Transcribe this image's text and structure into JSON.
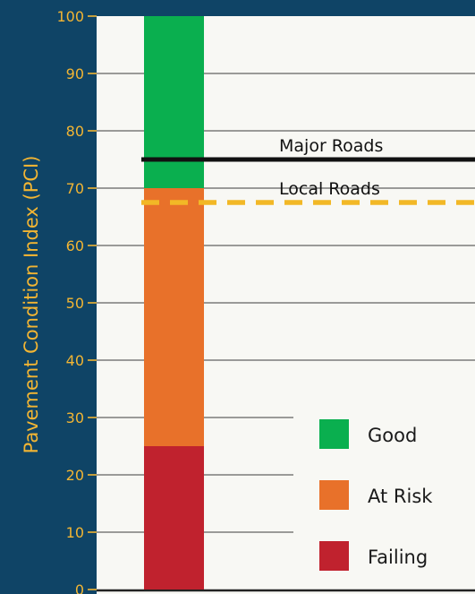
{
  "chart_data": {
    "type": "bar",
    "ylabel": "Pavement Condition Index (PCI)",
    "ylim": [
      0,
      100
    ],
    "yticks": [
      0,
      10,
      20,
      30,
      40,
      50,
      60,
      70,
      80,
      90,
      100
    ],
    "grid": true,
    "bands": [
      {
        "name": "Failing",
        "from": 0,
        "to": 25,
        "color": "#c0222e"
      },
      {
        "name": "At Risk",
        "from": 25,
        "to": 70,
        "color": "#e8712a"
      },
      {
        "name": "Good",
        "from": 70,
        "to": 100,
        "color": "#0aaf4f"
      }
    ],
    "reference_lines": [
      {
        "label": "Major Roads",
        "value": 75,
        "style": "solid",
        "color": "#111111"
      },
      {
        "label": "Local Roads",
        "value": 67.5,
        "style": "dashed",
        "color": "#f2b826"
      }
    ],
    "legend": {
      "position": "bottom-right",
      "items": [
        {
          "label": "Good",
          "color": "#0aaf4f"
        },
        {
          "label": "At Risk",
          "color": "#e8712a"
        },
        {
          "label": "Failing",
          "color": "#c0222e"
        }
      ]
    }
  },
  "colors": {
    "background": "#0f4466",
    "plot_area": "#f8f8f4",
    "grid": "#7a7a7a",
    "accent": "#f2b533"
  }
}
